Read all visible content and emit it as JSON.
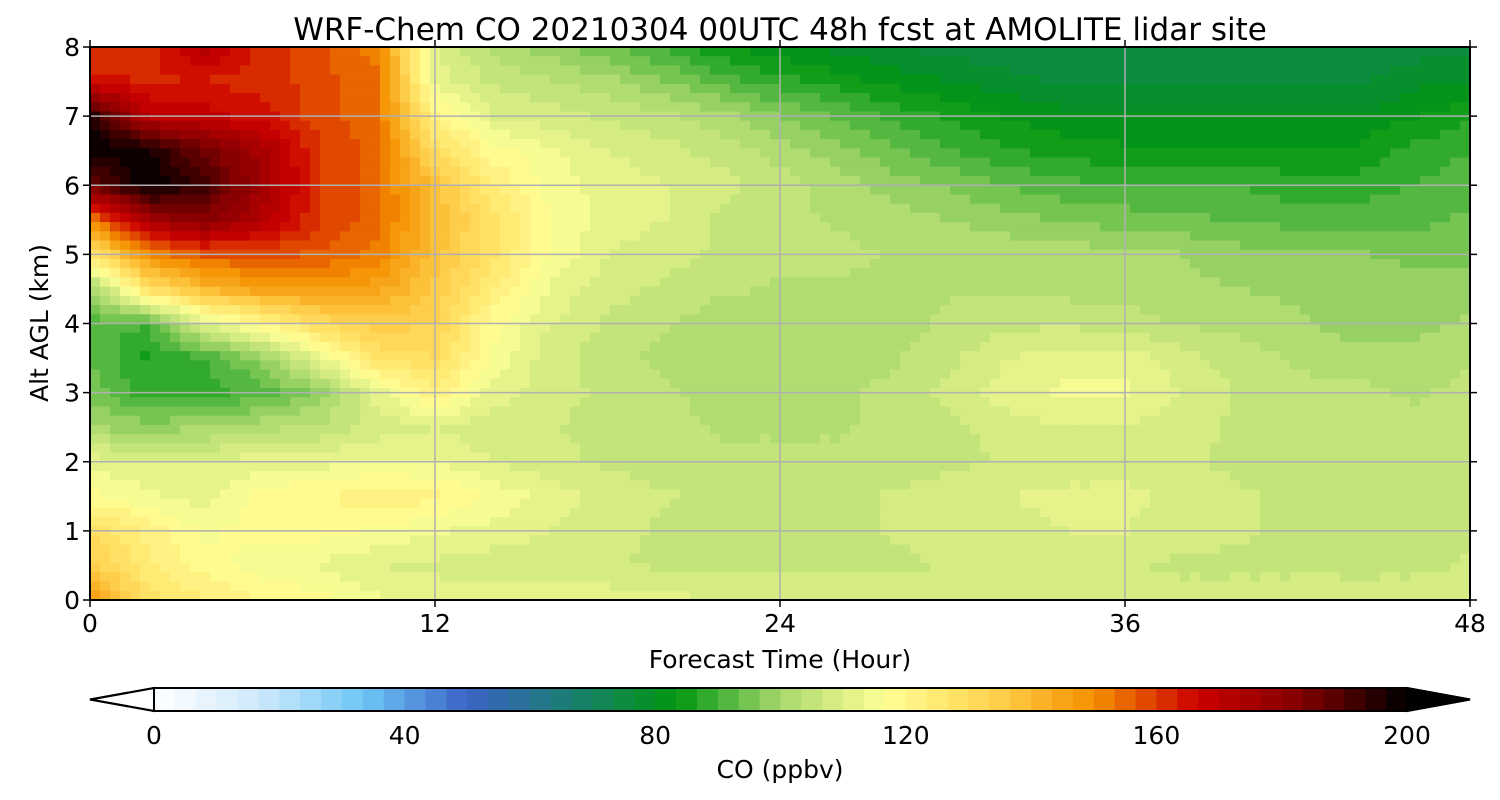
{
  "chart_data": {
    "type": "heatmap",
    "title": "WRF-Chem CO  20210304 00UTC 48h fcst at AMOLITE lidar site",
    "xlabel": "Forecast Time (Hour)",
    "ylabel": "Alt AGL (km)",
    "xlim": [
      0,
      48
    ],
    "ylim": [
      0,
      8
    ],
    "xticks": [
      0,
      12,
      24,
      36,
      48
    ],
    "yticks": [
      0,
      1,
      2,
      3,
      4,
      5,
      6,
      7,
      8
    ],
    "grid": true,
    "x": [
      0,
      2,
      4,
      6,
      8,
      10,
      12,
      14,
      16,
      18,
      20,
      22,
      24,
      26,
      28,
      30,
      32,
      34,
      36,
      38,
      40,
      42,
      44,
      46,
      48
    ],
    "y": [
      0,
      0.5,
      1,
      1.5,
      2,
      2.5,
      3,
      3.5,
      4,
      4.5,
      5,
      5.5,
      6,
      6.5,
      7,
      7.5,
      8
    ],
    "z": [
      [
        150,
        128,
        124,
        120,
        118,
        114,
        112,
        112,
        113,
        112,
        111,
        110,
        110,
        110,
        109,
        108,
        108,
        108,
        108,
        108,
        108,
        108,
        108,
        108,
        108
      ],
      [
        135,
        124,
        118,
        115,
        113,
        110,
        109,
        108,
        108,
        107,
        106,
        106,
        106,
        106,
        106,
        107,
        107,
        107,
        107,
        106,
        106,
        106,
        106,
        106,
        107
      ],
      [
        130,
        122,
        116,
        118,
        118,
        116,
        114,
        112,
        110,
        108,
        106,
        105,
        105,
        106,
        107,
        108,
        109,
        110,
        110,
        108,
        107,
        106,
        106,
        106,
        106
      ],
      [
        118,
        114,
        112,
        118,
        120,
        122,
        121,
        116,
        112,
        109,
        107,
        106,
        106,
        106,
        107,
        108,
        110,
        111,
        111,
        109,
        107,
        106,
        106,
        106,
        106
      ],
      [
        112,
        110,
        110,
        112,
        112,
        114,
        113,
        110,
        108,
        106,
        105,
        104,
        104,
        104,
        105,
        106,
        107,
        108,
        108,
        107,
        106,
        105,
        105,
        105,
        106
      ],
      [
        100,
        98,
        100,
        102,
        104,
        108,
        110,
        108,
        107,
        105,
        104,
        103,
        103,
        103,
        104,
        106,
        108,
        110,
        110,
        108,
        106,
        105,
        104,
        104,
        105
      ],
      [
        96,
        88,
        88,
        92,
        98,
        112,
        122,
        112,
        108,
        106,
        104,
        102,
        102,
        103,
        104,
        108,
        112,
        114,
        114,
        110,
        106,
        104,
        104,
        103,
        104
      ],
      [
        93,
        86,
        90,
        98,
        112,
        128,
        130,
        116,
        108,
        105,
        102,
        101,
        101,
        102,
        103,
        106,
        110,
        112,
        112,
        108,
        105,
        103,
        102,
        102,
        103
      ],
      [
        92,
        90,
        110,
        120,
        130,
        135,
        133,
        118,
        110,
        106,
        104,
        101,
        101,
        101,
        102,
        104,
        106,
        106,
        105,
        103,
        102,
        101,
        98,
        98,
        101
      ],
      [
        98,
        128,
        140,
        146,
        148,
        145,
        136,
        124,
        113,
        108,
        106,
        104,
        103,
        103,
        103,
        103,
        103,
        102,
        102,
        101,
        100,
        99,
        97,
        98,
        98
      ],
      [
        126,
        150,
        157,
        158,
        156,
        152,
        138,
        128,
        116,
        110,
        108,
        106,
        104,
        104,
        103,
        103,
        102,
        102,
        101,
        100,
        98,
        97,
        97,
        96,
        96
      ],
      [
        152,
        176,
        182,
        172,
        160,
        155,
        140,
        128,
        117,
        112,
        110,
        106,
        104,
        103,
        102,
        100,
        98,
        96,
        95,
        94,
        93,
        92,
        92,
        92,
        94
      ],
      [
        185,
        200,
        192,
        176,
        160,
        155,
        138,
        124,
        115,
        112,
        110,
        108,
        105,
        102,
        98,
        96,
        93,
        91,
        90,
        90,
        90,
        88,
        88,
        90,
        92
      ],
      [
        200,
        198,
        185,
        175,
        160,
        155,
        130,
        118,
        114,
        110,
        108,
        105,
        102,
        98,
        94,
        90,
        87,
        85,
        84,
        84,
        84,
        84,
        84,
        88,
        90
      ],
      [
        196,
        170,
        168,
        165,
        158,
        154,
        122,
        110,
        108,
        106,
        104,
        101,
        97,
        93,
        89,
        86,
        83,
        81,
        80,
        80,
        80,
        80,
        80,
        83,
        86
      ],
      [
        165,
        163,
        163,
        162,
        158,
        154,
        112,
        106,
        104,
        101,
        97,
        92,
        88,
        85,
        82,
        80,
        78,
        76,
        76,
        76,
        76,
        76,
        76,
        79,
        80
      ],
      [
        160,
        162,
        172,
        162,
        157,
        152,
        110,
        102,
        98,
        94,
        89,
        84,
        81,
        79,
        77,
        75,
        74,
        73,
        73,
        73,
        73,
        73,
        74,
        75,
        76
      ]
    ],
    "colorbar": {
      "label": "CO  (ppbv)",
      "min": 0,
      "max": 200,
      "ticks": [
        0,
        40,
        80,
        120,
        160,
        200
      ],
      "extend": "both",
      "levels": 60,
      "colors": [
        "#ffffff",
        "#cfe9fa",
        "#6ec7f6",
        "#3b63c6",
        "#1a7f72",
        "#00960f",
        "#a8d86e",
        "#ffff96",
        "#ffd452",
        "#f59000",
        "#cc0000",
        "#800000",
        "#000000"
      ]
    }
  }
}
